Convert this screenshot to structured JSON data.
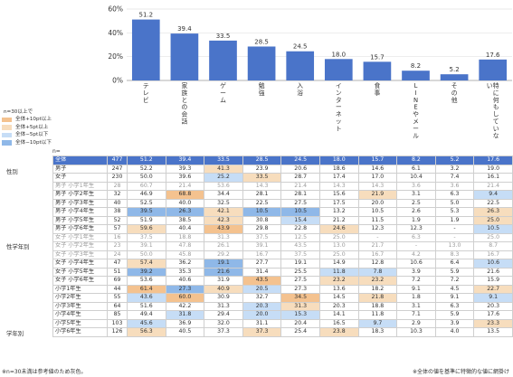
{
  "chart_data": {
    "type": "bar",
    "categories": [
      "テレビ",
      "家族との会話",
      "ゲーム",
      "勉強",
      "入浴",
      "インターネット",
      "食事",
      "LINEやメール",
      "その他",
      "特に何もしていない"
    ],
    "values": [
      51.2,
      39.4,
      33.5,
      28.5,
      24.5,
      18.0,
      15.7,
      8.2,
      5.2,
      17.6
    ],
    "yticks": [
      "60%",
      "40%",
      "20%",
      "0%"
    ],
    "ylim": [
      0,
      60
    ],
    "bar_color": "#4a74c9"
  },
  "legend": {
    "title": "n=30以上で",
    "items": [
      {
        "label": "全体+10pt以上",
        "color": "#f4c28f"
      },
      {
        "label": "全体+5pt以上",
        "color": "#f7ddbd"
      },
      {
        "label": "全体−5pt以下",
        "color": "#c6ddf6"
      },
      {
        "label": "全体−10pt以下",
        "color": "#8fb8e8"
      }
    ]
  },
  "n_label": "n=",
  "groups": {
    "sex": "性別",
    "sexgrade": "性学年別",
    "grade": "学年別"
  },
  "table": {
    "total": {
      "label": "全体",
      "n": "477",
      "values": [
        "51.2",
        "39.4",
        "33.5",
        "28.5",
        "24.5",
        "18.0",
        "15.7",
        "8.2",
        "5.2",
        "17.6"
      ]
    },
    "rows": [
      {
        "label": "男子",
        "n": "247",
        "values": [
          "52.2",
          "39.3",
          "41.3",
          "23.9",
          "20.6",
          "18.6",
          "14.6",
          "6.1",
          "3.2",
          "19.0"
        ],
        "hl": [
          "",
          "",
          "hi2",
          "",
          "",
          "",
          "",
          "",
          "",
          ""
        ],
        "small": false,
        "sep": true
      },
      {
        "label": "女子",
        "n": "230",
        "values": [
          "50.0",
          "39.6",
          "25.2",
          "33.5",
          "28.7",
          "17.4",
          "17.0",
          "10.4",
          "7.4",
          "16.1"
        ],
        "hl": [
          "",
          "",
          "lo2",
          "hi2",
          "",
          "",
          "",
          "",
          "",
          ""
        ],
        "small": false,
        "sep": false
      },
      {
        "label": "男子 小学1年生",
        "n": "28",
        "values": [
          "60.7",
          "21.4",
          "53.6",
          "14.3",
          "21.4",
          "14.3",
          "14.3",
          "3.6",
          "3.6",
          "21.4"
        ],
        "hl": [
          "",
          "",
          "",
          "",
          "",
          "",
          "",
          "",
          "",
          ""
        ],
        "small": true,
        "sep": true
      },
      {
        "label": "男子 小学2年生",
        "n": "32",
        "values": [
          "46.9",
          "68.8",
          "34.4",
          "28.1",
          "28.1",
          "15.6",
          "21.9",
          "3.1",
          "6.3",
          "9.4"
        ],
        "hl": [
          "",
          "hi1",
          "",
          "",
          "",
          "",
          "hi2",
          "",
          "",
          "lo2"
        ],
        "small": false,
        "sep": false
      },
      {
        "label": "男子 小学3年生",
        "n": "40",
        "values": [
          "52.5",
          "40.0",
          "32.5",
          "22.5",
          "27.5",
          "17.5",
          "20.0",
          "2.5",
          "5.0",
          "22.5"
        ],
        "hl": [
          "",
          "",
          "",
          "",
          "",
          "",
          "",
          "",
          "",
          ""
        ],
        "small": false,
        "sep": false
      },
      {
        "label": "男子 小学4年生",
        "n": "38",
        "values": [
          "39.5",
          "26.3",
          "42.1",
          "10.5",
          "10.5",
          "13.2",
          "10.5",
          "2.6",
          "5.3",
          "26.3"
        ],
        "hl": [
          "lo1",
          "lo1",
          "hi2",
          "lo1",
          "lo1",
          "",
          "",
          "",
          "",
          "hi2"
        ],
        "small": false,
        "sep": false
      },
      {
        "label": "男子 小学5年生",
        "n": "52",
        "values": [
          "51.9",
          "38.5",
          "42.3",
          "30.8",
          "15.4",
          "21.2",
          "11.5",
          "1.9",
          "1.9",
          "25.0"
        ],
        "hl": [
          "",
          "",
          "hi2",
          "",
          "lo2",
          "",
          "",
          "",
          "",
          "hi2"
        ],
        "small": false,
        "sep": false
      },
      {
        "label": "男子 小学6年生",
        "n": "57",
        "values": [
          "59.6",
          "40.4",
          "43.9",
          "29.8",
          "22.8",
          "24.6",
          "12.3",
          "12.3",
          "-",
          "10.5"
        ],
        "hl": [
          "hi2",
          "",
          "hi1",
          "",
          "",
          "hi2",
          "",
          "",
          "",
          "lo2"
        ],
        "small": false,
        "sep": false
      },
      {
        "label": "女子 小学1年生",
        "n": "16",
        "values": [
          "37.5",
          "18.8",
          "31.3",
          "37.5",
          "12.5",
          "25.0",
          "-",
          "6.3",
          "-",
          "25.0"
        ],
        "hl": [
          "",
          "",
          "",
          "",
          "",
          "",
          "",
          "",
          "",
          ""
        ],
        "small": true,
        "sep": false
      },
      {
        "label": "女子 小学2年生",
        "n": "23",
        "values": [
          "39.1",
          "47.8",
          "26.1",
          "39.1",
          "43.5",
          "13.0",
          "21.7",
          "-",
          "13.0",
          "8.7"
        ],
        "hl": [
          "",
          "",
          "",
          "",
          "",
          "",
          "",
          "",
          "",
          ""
        ],
        "small": true,
        "sep": false
      },
      {
        "label": "女子 小学3年生",
        "n": "24",
        "values": [
          "50.0",
          "45.8",
          "29.2",
          "16.7",
          "37.5",
          "25.0",
          "16.7",
          "4.2",
          "8.3",
          "16.7"
        ],
        "hl": [
          "",
          "",
          "",
          "",
          "",
          "",
          "",
          "",
          "",
          ""
        ],
        "small": true,
        "sep": false
      },
      {
        "label": "女子 小学4年生",
        "n": "47",
        "values": [
          "57.4",
          "36.2",
          "19.1",
          "27.7",
          "19.1",
          "14.9",
          "12.8",
          "10.6",
          "6.4",
          "10.6"
        ],
        "hl": [
          "hi2",
          "",
          "lo1",
          "",
          "",
          "",
          "",
          "",
          "",
          "lo2"
        ],
        "small": false,
        "sep": false
      },
      {
        "label": "女子 小学5年生",
        "n": "51",
        "values": [
          "39.2",
          "35.3",
          "21.6",
          "31.4",
          "25.5",
          "11.8",
          "7.8",
          "3.9",
          "5.9",
          "21.6"
        ],
        "hl": [
          "lo1",
          "",
          "lo1",
          "",
          "",
          "lo2",
          "lo2",
          "",
          "",
          ""
        ],
        "small": false,
        "sep": false
      },
      {
        "label": "女子 小学6年生",
        "n": "69",
        "values": [
          "53.6",
          "40.6",
          "31.9",
          "43.5",
          "27.5",
          "23.2",
          "23.2",
          "7.2",
          "7.2",
          "15.9"
        ],
        "hl": [
          "",
          "",
          "",
          "hi1",
          "",
          "hi2",
          "hi2",
          "",
          "",
          ""
        ],
        "small": false,
        "sep": false
      },
      {
        "label": "小学1年生",
        "n": "44",
        "values": [
          "61.4",
          "27.3",
          "40.9",
          "20.5",
          "27.3",
          "13.6",
          "18.2",
          "9.1",
          "4.5",
          "22.7"
        ],
        "hl": [
          "hi1",
          "lo1",
          "hi2",
          "lo2",
          "",
          "",
          "",
          "",
          "",
          "hi2"
        ],
        "small": false,
        "sep": true
      },
      {
        "label": "小学2年生",
        "n": "55",
        "values": [
          "43.6",
          "60.0",
          "30.9",
          "32.7",
          "34.5",
          "14.5",
          "21.8",
          "1.8",
          "9.1",
          "9.1"
        ],
        "hl": [
          "lo2",
          "hi1",
          "",
          "",
          "hi1",
          "",
          "hi2",
          "",
          "",
          "lo2"
        ],
        "small": false,
        "sep": false
      },
      {
        "label": "小学3年生",
        "n": "64",
        "values": [
          "51.6",
          "42.2",
          "31.3",
          "20.3",
          "31.3",
          "20.3",
          "18.8",
          "3.1",
          "6.3",
          "20.3"
        ],
        "hl": [
          "",
          "",
          "",
          "lo2",
          "hi2",
          "",
          "",
          "",
          "",
          ""
        ],
        "small": false,
        "sep": false
      },
      {
        "label": "小学4年生",
        "n": "85",
        "values": [
          "49.4",
          "31.8",
          "29.4",
          "20.0",
          "15.3",
          "14.1",
          "11.8",
          "7.1",
          "5.9",
          "17.6"
        ],
        "hl": [
          "",
          "lo2",
          "",
          "lo2",
          "lo2",
          "",
          "",
          "",
          "",
          ""
        ],
        "small": false,
        "sep": false
      },
      {
        "label": "小学5年生",
        "n": "103",
        "values": [
          "45.6",
          "36.9",
          "32.0",
          "31.1",
          "20.4",
          "16.5",
          "9.7",
          "2.9",
          "3.9",
          "23.3"
        ],
        "hl": [
          "lo2",
          "",
          "",
          "",
          "",
          "",
          "lo2",
          "",
          "",
          "hi2"
        ],
        "small": false,
        "sep": false
      },
      {
        "label": "小学6年生",
        "n": "126",
        "values": [
          "56.3",
          "40.5",
          "37.3",
          "37.3",
          "25.4",
          "23.8",
          "18.3",
          "10.3",
          "4.0",
          "13.5"
        ],
        "hl": [
          "hi2",
          "",
          "",
          "hi2",
          "",
          "hi2",
          "",
          "",
          "",
          ""
        ],
        "small": false,
        "sep": false
      }
    ]
  },
  "footnote_left": "※n=30未満は参考値のため灰色。",
  "footnote_right": "※全体の値を基準に特徴的な値に網掛け"
}
